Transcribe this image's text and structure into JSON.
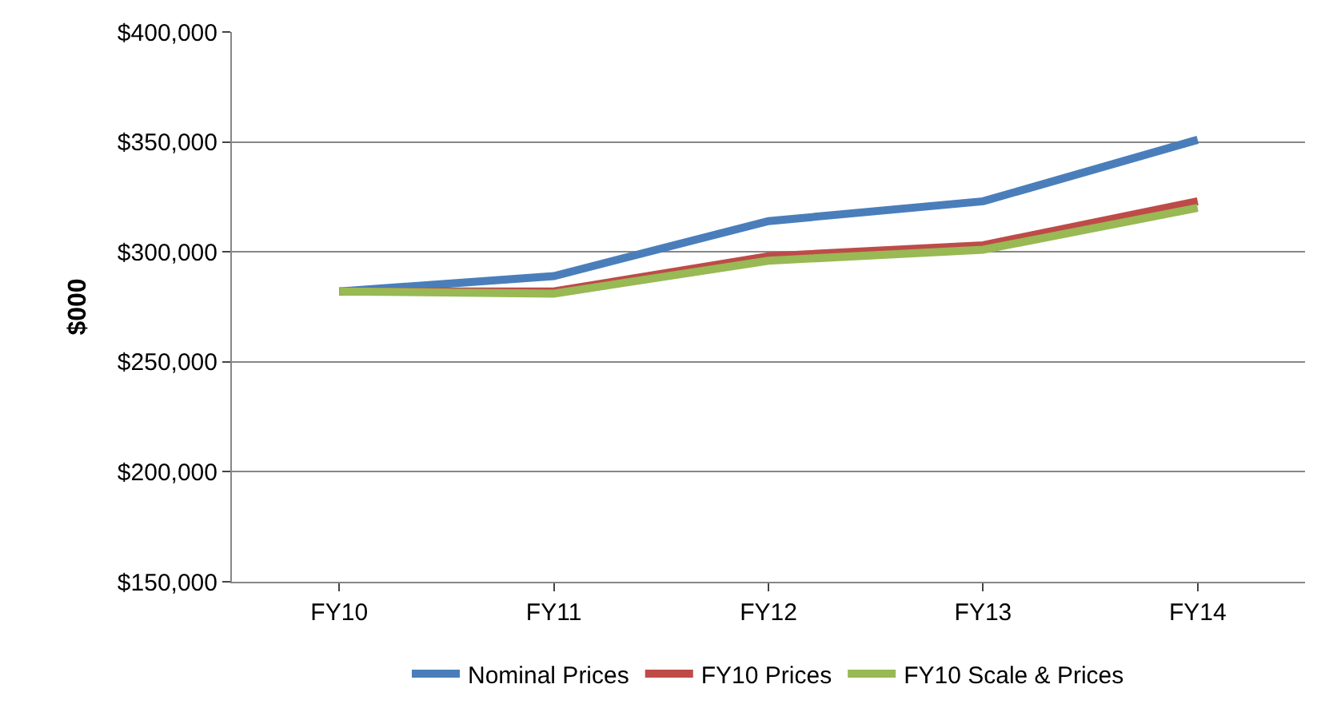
{
  "chart_data": {
    "type": "line",
    "ylabel": "$000",
    "categories": [
      "FY10",
      "FY11",
      "FY12",
      "FY13",
      "FY14"
    ],
    "series": [
      {
        "name": "Nominal Prices",
        "color": "#4a7ebb",
        "values": [
          282000,
          289000,
          314000,
          323000,
          351000
        ]
      },
      {
        "name": "FY10 Prices",
        "color": "#be4b48",
        "values": [
          282000,
          282000,
          298000,
          303000,
          323000
        ]
      },
      {
        "name": "FY10 Scale & Prices",
        "color": "#98b954",
        "values": [
          282000,
          281000,
          296000,
          301000,
          320000
        ]
      }
    ],
    "ylim": [
      150000,
      400000
    ],
    "yticks": [
      {
        "value": 150000,
        "label": "$150,000"
      },
      {
        "value": 200000,
        "label": "$200,000"
      },
      {
        "value": 250000,
        "label": "$250,000"
      },
      {
        "value": 300000,
        "label": "$300,000"
      },
      {
        "value": 350000,
        "label": "$350,000"
      },
      {
        "value": 400000,
        "label": "$400,000"
      }
    ],
    "grid": "y",
    "legend": "bottom",
    "marker": "none",
    "line_style": "solid"
  }
}
